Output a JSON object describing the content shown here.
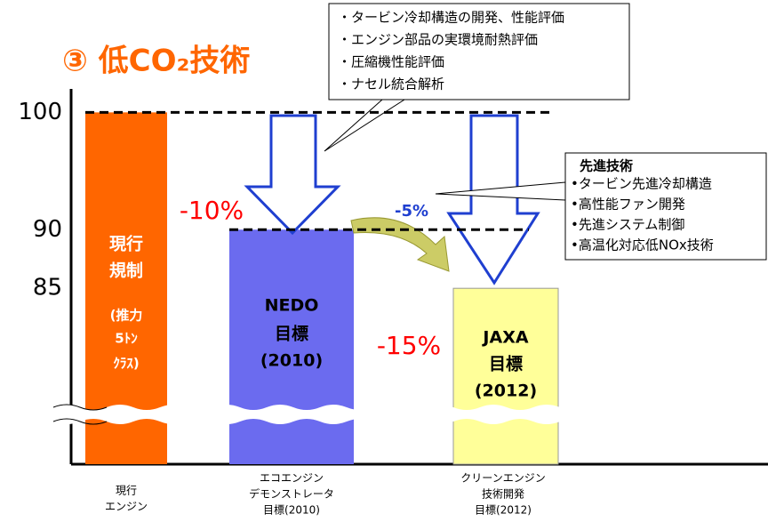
{
  "chart_data": {
    "type": "bar",
    "title": "③ 低CO₂技術",
    "categories": [
      [
        "現行",
        "エンジン"
      ],
      [
        "エコエンジン",
        "デモンストレータ",
        "目標(2010)"
      ],
      [
        "クリーンエンジン",
        "技術開発",
        "目標(2012)"
      ]
    ],
    "values": [
      100,
      90,
      85
    ],
    "colors": [
      "#ff6600",
      "#6b6bef",
      "#ffff99"
    ],
    "bar_labels": [
      [
        "現行",
        "規制",
        "(推力",
        "5ﾄﾝ",
        "ｸﾗｽ)"
      ],
      [
        "NEDO",
        "目標",
        "(2010)"
      ],
      [
        "JAXA",
        "目標",
        "(2012)"
      ]
    ],
    "ylim": [
      70,
      102
    ],
    "yticks": [
      85,
      90,
      100
    ],
    "annotations": [
      {
        "text": "-10%",
        "color": "#ff0000"
      },
      {
        "text": "-5%",
        "color": "#1f3fd0"
      },
      {
        "text": "-15%",
        "color": "#ff0000"
      }
    ],
    "callouts": [
      {
        "lines": [
          "・タービン冷却構造の開発、性能評価",
          "・エンジン部品の実環境耐熱評価",
          "・圧縮機性能評価",
          "・ナセル統合解析"
        ]
      },
      {
        "heading": "先進技術",
        "lines": [
          "•タービン先進冷却構造",
          "•高性能ファン開発",
          "•先進システム制御",
          "•高温化対応低NOx技術"
        ]
      }
    ]
  }
}
